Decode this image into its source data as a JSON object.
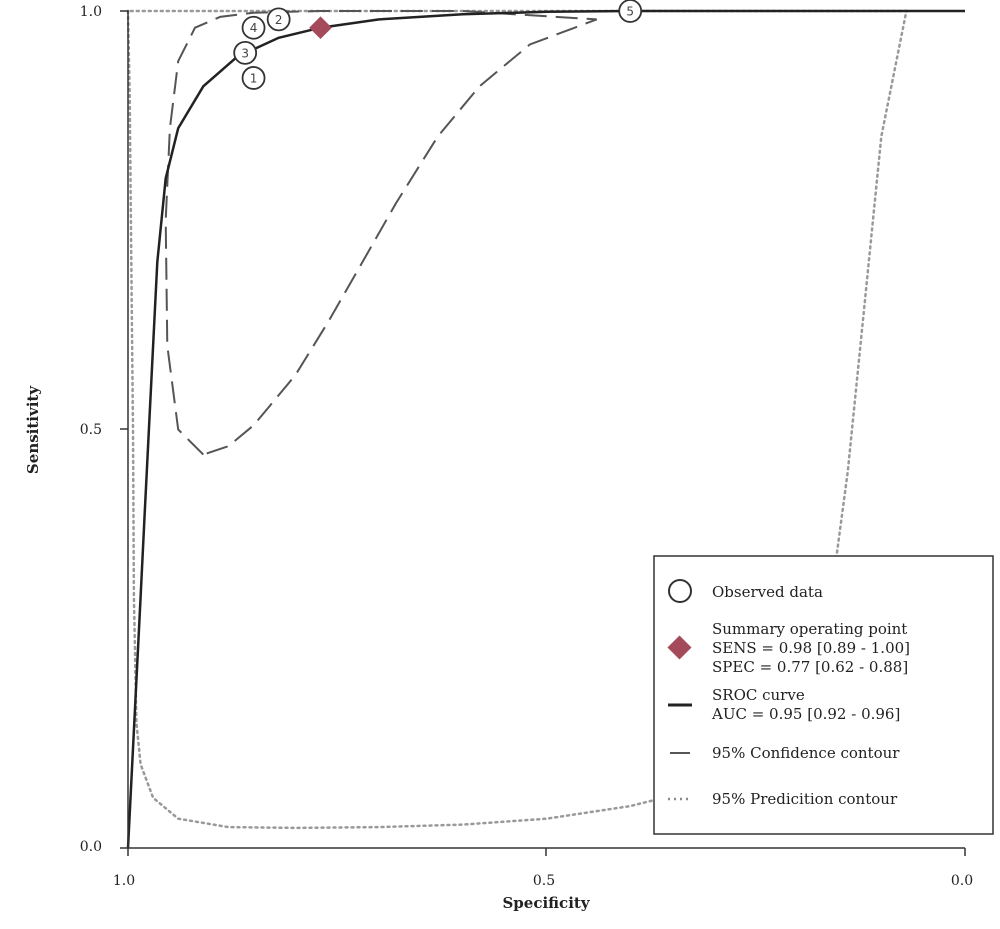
{
  "chart_data": {
    "type": "scatter",
    "xlabel": "Specificity",
    "ylabel": "Sensitivity",
    "xlim": [
      1.0,
      0.0
    ],
    "ylim": [
      0.0,
      1.0
    ],
    "x_ticks": [
      "1.0",
      "0.5",
      "0.0"
    ],
    "y_ticks": [
      "0.0",
      "0.5",
      "1.0"
    ],
    "grid": false,
    "legend_position": "bottom-right",
    "observed_data": {
      "name": "Observed data",
      "points": [
        {
          "label": "1",
          "specificity": 0.85,
          "sensitivity": 0.92
        },
        {
          "label": "2",
          "specificity": 0.82,
          "sensitivity": 0.99
        },
        {
          "label": "3",
          "specificity": 0.86,
          "sensitivity": 0.95
        },
        {
          "label": "4",
          "specificity": 0.85,
          "sensitivity": 0.98
        },
        {
          "label": "5",
          "specificity": 0.4,
          "sensitivity": 1.0
        }
      ]
    },
    "summary_point": {
      "name": "Summary operating point",
      "specificity": 0.77,
      "sensitivity": 0.98,
      "sens_text": "SENS = 0.98 [0.89 - 1.00]",
      "spec_text": "SPEC = 0.77 [0.62 - 0.88]"
    },
    "sroc_curve": {
      "name": "SROC curve",
      "auc_text": "AUC = 0.95 [0.92 - 0.96]",
      "points": [
        [
          1.0,
          0.0
        ],
        [
          0.995,
          0.1
        ],
        [
          0.99,
          0.2
        ],
        [
          0.985,
          0.3
        ],
        [
          0.98,
          0.4
        ],
        [
          0.975,
          0.5
        ],
        [
          0.97,
          0.6
        ],
        [
          0.965,
          0.7
        ],
        [
          0.955,
          0.8
        ],
        [
          0.94,
          0.86
        ],
        [
          0.91,
          0.91
        ],
        [
          0.87,
          0.945
        ],
        [
          0.82,
          0.968
        ],
        [
          0.77,
          0.98
        ],
        [
          0.7,
          0.99
        ],
        [
          0.6,
          0.996
        ],
        [
          0.5,
          0.999
        ],
        [
          0.4,
          1.0
        ],
        [
          0.2,
          1.0
        ],
        [
          0.0,
          1.0
        ]
      ]
    },
    "confidence_contour": {
      "name": "95% Confidence contour",
      "points": [
        [
          0.91,
          0.47
        ],
        [
          0.94,
          0.5
        ],
        [
          0.953,
          0.6
        ],
        [
          0.955,
          0.75
        ],
        [
          0.95,
          0.86
        ],
        [
          0.94,
          0.94
        ],
        [
          0.92,
          0.98
        ],
        [
          0.89,
          0.993
        ],
        [
          0.85,
          0.998
        ],
        [
          0.77,
          1.0
        ],
        [
          0.6,
          1.0
        ],
        [
          0.44,
          0.99
        ],
        [
          0.52,
          0.96
        ],
        [
          0.58,
          0.91
        ],
        [
          0.63,
          0.85
        ],
        [
          0.68,
          0.77
        ],
        [
          0.72,
          0.7
        ],
        [
          0.76,
          0.63
        ],
        [
          0.8,
          0.565
        ],
        [
          0.85,
          0.505
        ],
        [
          0.88,
          0.48
        ],
        [
          0.91,
          0.47
        ]
      ]
    },
    "prediction_contour": {
      "name": "95% Predicition contour",
      "points": [
        [
          1.0,
          1.0
        ],
        [
          0.998,
          0.9
        ],
        [
          0.996,
          0.7
        ],
        [
          0.994,
          0.5
        ],
        [
          0.993,
          0.3
        ],
        [
          0.99,
          0.15
        ],
        [
          0.985,
          0.1
        ],
        [
          0.97,
          0.06
        ],
        [
          0.94,
          0.035
        ],
        [
          0.88,
          0.025
        ],
        [
          0.8,
          0.024
        ],
        [
          0.7,
          0.025
        ],
        [
          0.6,
          0.028
        ],
        [
          0.5,
          0.035
        ],
        [
          0.4,
          0.05
        ],
        [
          0.3,
          0.075
        ],
        [
          0.22,
          0.12
        ],
        [
          0.18,
          0.2
        ],
        [
          0.16,
          0.3
        ],
        [
          0.14,
          0.45
        ],
        [
          0.12,
          0.65
        ],
        [
          0.1,
          0.85
        ],
        [
          0.07,
          1.0
        ],
        [
          0.5,
          1.0
        ],
        [
          1.0,
          1.0
        ]
      ]
    }
  }
}
